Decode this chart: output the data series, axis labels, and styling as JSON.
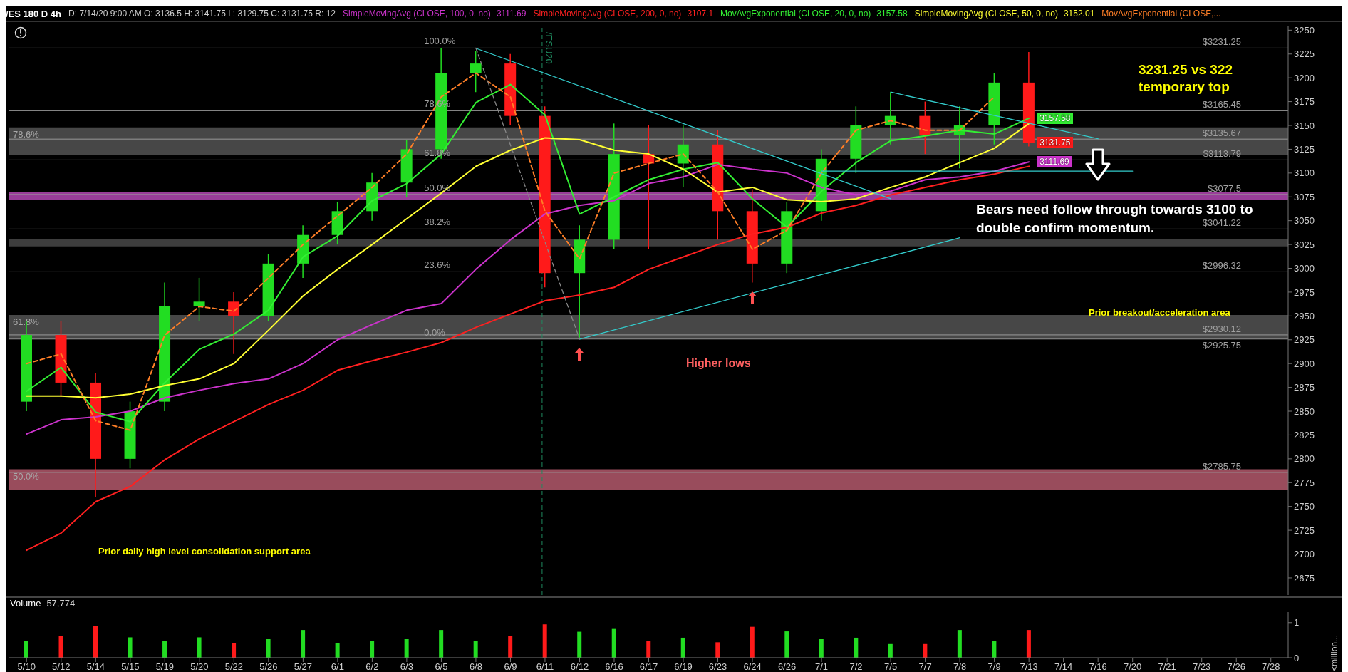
{
  "chart_data": [
    {
      "type": "candlestick",
      "title": "/ES 180 D 4h",
      "subtitle": "D: 7/14/20 9:00 AM  O: 3136.5  H: 3141.75  L: 3129.75  C: 3131.75  R: 12",
      "categories": [
        "5/10",
        "5/12",
        "5/14",
        "5/15",
        "5/19",
        "5/20",
        "5/22",
        "5/26",
        "5/27",
        "6/1",
        "6/2",
        "6/3",
        "6/5",
        "6/8",
        "6/9",
        "6/11",
        "6/12",
        "6/16",
        "6/17",
        "6/19",
        "6/23",
        "6/24",
        "6/26",
        "7/1",
        "7/2",
        "7/5",
        "7/7",
        "7/8",
        "7/9",
        "7/13",
        "7/14",
        "7/16",
        "7/20",
        "7/21",
        "7/23",
        "7/26",
        "7/28"
      ],
      "ohlc": [
        [
          2860,
          2945,
          2850,
          2930
        ],
        [
          2930,
          2945,
          2865,
          2880
        ],
        [
          2880,
          2890,
          2760,
          2800
        ],
        [
          2800,
          2860,
          2790,
          2850
        ],
        [
          2860,
          2985,
          2850,
          2960
        ],
        [
          2960,
          2990,
          2945,
          2965
        ],
        [
          2965,
          2975,
          2910,
          2950
        ],
        [
          2950,
          3015,
          2945,
          3005
        ],
        [
          3005,
          3045,
          2990,
          3035
        ],
        [
          3035,
          3070,
          3025,
          3060
        ],
        [
          3060,
          3100,
          3050,
          3090
        ],
        [
          3090,
          3135,
          3075,
          3125
        ],
        [
          3125,
          3231.25,
          3115,
          3205
        ],
        [
          3205,
          3228,
          3185,
          3215
        ],
        [
          3215,
          3225,
          3150,
          3160
        ],
        [
          3160,
          3170,
          2980,
          2995
        ],
        [
          2995,
          3045,
          2925.75,
          3030
        ],
        [
          3030,
          3152,
          3020,
          3120
        ],
        [
          3120,
          3150,
          3020,
          3110
        ],
        [
          3110,
          3150,
          3085,
          3130
        ],
        [
          3130,
          3145,
          3030,
          3060
        ],
        [
          3060,
          3083,
          2985,
          3005
        ],
        [
          3005,
          3070,
          2995,
          3060
        ],
        [
          3060,
          3125,
          3050,
          3115
        ],
        [
          3115,
          3170,
          3100,
          3150
        ],
        [
          3150,
          3185,
          3130,
          3160
        ],
        [
          3160,
          3175,
          3120,
          3140
        ],
        [
          3140,
          3170,
          3105,
          3150
        ],
        [
          3150,
          3205,
          3130,
          3195
        ],
        [
          3195,
          3227,
          3128,
          3131.75
        ],
        null,
        null,
        null,
        null,
        null,
        null,
        null
      ],
      "colors": [
        "#22dd22",
        "#ff1a1a",
        "#ff1a1a",
        "#22dd22",
        "#22dd22",
        "#22dd22",
        "#ff1a1a",
        "#22dd22",
        "#22dd22",
        "#22dd22",
        "#22dd22",
        "#22dd22",
        "#22dd22",
        "#22dd22",
        "#ff1a1a",
        "#ff1a1a",
        "#22dd22",
        "#22dd22",
        "#ff1a1a",
        "#22dd22",
        "#ff1a1a",
        "#ff1a1a",
        "#22dd22",
        "#22dd22",
        "#22dd22",
        "#22dd22",
        "#ff1a1a",
        "#22dd22",
        "#22dd22",
        "#ff1a1a",
        null,
        null,
        null,
        null,
        null,
        null,
        null
      ],
      "series": [
        {
          "type": "line",
          "name": "SimpleMovingAvg (CLOSE, 100, 0, no)",
          "color": "#cc33cc",
          "values": [
            2826,
            2841,
            2844,
            2850,
            2864,
            2872,
            2879,
            2884,
            2900,
            2925,
            2941,
            2956,
            2963,
            2999,
            3030,
            3057,
            3066,
            3071,
            3089,
            3096,
            3109,
            3104,
            3100,
            3085,
            3077,
            3081,
            3093,
            3096,
            3102,
            3111.69,
            null,
            null,
            null,
            null,
            null,
            null,
            null
          ]
        },
        {
          "type": "line",
          "name": "SimpleMovingAvg (CLOSE, 200, 0, no)",
          "color": "#ff2020",
          "values": [
            2704,
            2722,
            2755,
            2771,
            2799,
            2821,
            2839,
            2857,
            2872,
            2893,
            2903,
            2912,
            2922,
            2938,
            2952,
            2966,
            2972,
            2980,
            2999,
            3012,
            3025,
            3036,
            3043,
            3058,
            3066,
            3077,
            3085,
            3093,
            3099,
            3107.1,
            null,
            null,
            null,
            null,
            null,
            null,
            null
          ]
        },
        {
          "type": "line",
          "name": "MovAvgExponential (CLOSE, 20, 0, no)",
          "color": "#33ee33",
          "values": [
            2871,
            2896,
            2849,
            2839,
            2880,
            2915,
            2931,
            2956,
            3012,
            3034,
            3071,
            3089,
            3120,
            3174,
            3193,
            3161,
            3057,
            3075,
            3093,
            3104,
            3111,
            3073,
            3043,
            3081,
            3111,
            3134,
            3139,
            3145,
            3141,
            3157.58,
            null,
            null,
            null,
            null,
            null,
            null,
            null
          ]
        },
        {
          "type": "line",
          "name": "SimpleMovingAvg (CLOSE, 50, 0, no)",
          "color": "#ffff33",
          "values": [
            2866,
            2866,
            2864,
            2868,
            2877,
            2884,
            2900,
            2935,
            2971,
            2999,
            3025,
            3052,
            3079,
            3107,
            3124,
            3137,
            3135,
            3124,
            3120,
            3104,
            3080,
            3085,
            3072,
            3070,
            3073,
            3085,
            3096,
            3111,
            3126,
            3152.01,
            null,
            null,
            null,
            null,
            null,
            null,
            null
          ]
        },
        {
          "type": "line",
          "name": "MovAvgExponential (CLOSE,...",
          "color": "#ff7f27",
          "line_style": "dashed",
          "values": [
            2900,
            2910,
            2840,
            2830,
            2930,
            2960,
            2955,
            2990,
            3025,
            3055,
            3085,
            3120,
            3180,
            3205,
            3180,
            3060,
            3010,
            3100,
            3110,
            3120,
            3080,
            3020,
            3040,
            3100,
            3145,
            3155,
            3145,
            3145,
            3180,
            null,
            null,
            null,
            null,
            null,
            null,
            null,
            null
          ]
        },
        {
          "type": "line",
          "color": "#33cccc",
          "x": [
            "6/8",
            "7/5"
          ],
          "values": [
            3231,
            3073
          ]
        },
        {
          "type": "line",
          "color": "#33cccc",
          "x": [
            "6/12",
            "7/8"
          ],
          "values": [
            2925.75,
            3032
          ]
        },
        {
          "type": "line",
          "color": "#33cccc",
          "x": [
            "7/5",
            "7/16"
          ],
          "values": [
            3185,
            3136
          ]
        },
        {
          "type": "line",
          "color": "#33cccc",
          "x": [
            "7/1",
            "7/20"
          ],
          "values": [
            3102,
            3102
          ]
        },
        {
          "type": "line",
          "color": "#888888",
          "line_style": "dashed",
          "x": [
            "6/8",
            "6/12"
          ],
          "values": [
            3231.25,
            2925.75
          ]
        }
      ],
      "ylim": [
        2657,
        3254
      ],
      "yticks": [
        2675,
        2700,
        2725,
        2750,
        2775,
        2800,
        2825,
        2850,
        2875,
        2900,
        2925,
        2950,
        2975,
        3000,
        3025,
        3050,
        3075,
        3100,
        3125,
        3150,
        3175,
        3200,
        3225,
        3250
      ],
      "tick_labels": "y",
      "legend": "top",
      "marker": "none",
      "line_style": "solid",
      "ref_lines": [
        {
          "axis": "y",
          "value": 3231.25,
          "label": "$3231.25",
          "color": "#9a9a9a"
        },
        {
          "axis": "y",
          "value": 3165.45,
          "label": "$3165.45",
          "color": "#9a9a9a"
        },
        {
          "axis": "y",
          "value": 3135.67,
          "label": "$3135.67",
          "color": "#9a9a9a"
        },
        {
          "axis": "y",
          "value": 3113.79,
          "label": "$3113.79",
          "color": "#9a9a9a"
        },
        {
          "axis": "y",
          "value": 3077.5,
          "label": "$3077.5",
          "color": "#9a9a9a"
        },
        {
          "axis": "y",
          "value": 3041.22,
          "label": "$3041.22",
          "color": "#9a9a9a"
        },
        {
          "axis": "y",
          "value": 2996.32,
          "label": "$2996.32",
          "color": "#9a9a9a"
        },
        {
          "axis": "y",
          "value": 2930.12,
          "label": "$2930.12",
          "color": "#9a9a9a"
        },
        {
          "axis": "y",
          "value": 2925.75,
          "label": "$2925.75",
          "color": "#9a9a9a"
        },
        {
          "axis": "y",
          "value": 2785.75,
          "label": "$2785.75",
          "color": "#9a9a9a"
        },
        {
          "axis": "x",
          "value": "6/11",
          "label": "/ESU20",
          "color": "#1f8a5f",
          "line_style": "dashed"
        }
      ],
      "bands": [
        {
          "axis": "y",
          "from": 3119,
          "to": 3148,
          "label": "78.6%",
          "color": "#777777"
        },
        {
          "axis": "y",
          "from": 2926,
          "to": 2951,
          "label": "61.8%",
          "color": "#777777"
        },
        {
          "axis": "y",
          "from": 2767,
          "to": 2789,
          "label": "50.0%",
          "color": "#ff7f9a"
        },
        {
          "axis": "y",
          "from": 3072,
          "to": 3080,
          "color": "#ff66ff"
        },
        {
          "axis": "y",
          "from": 3023,
          "to": 3031,
          "color": "#666666"
        }
      ],
      "annotations": [
        {
          "text": "100.0%",
          "x": "6/5",
          "y": 3231.25
        },
        {
          "text": "78.6%",
          "x": "6/5",
          "y": 3165.45
        },
        {
          "text": "61.8%",
          "x": "6/5",
          "y": 3113.79
        },
        {
          "text": "50.0%",
          "x": "6/5",
          "y": 3077.5
        },
        {
          "text": "38.2%",
          "x": "6/5",
          "y": 3041.22
        },
        {
          "text": "23.6%",
          "x": "6/5",
          "y": 2996.32
        },
        {
          "text": "0.0%",
          "x": "6/5",
          "y": 2925.75
        },
        {
          "text": "3157.58",
          "x": "7/13",
          "y": 3157.58
        },
        {
          "text": "3131.75",
          "x": "7/13",
          "y": 3131.75
        },
        {
          "text": "3111.69",
          "x": "7/13",
          "y": 3111.69
        },
        "3111.69",
        "3107.1",
        "3157.58",
        "3152.01",
        "3231.25 vs 322",
        "temporary top",
        "Bears need follow through towards 3100 to",
        "double confirm momentum.",
        "Prior breakout/acceleration area",
        "Higher lows",
        "Prior daily high level consolidation support area"
      ]
    },
    {
      "type": "bar",
      "title": "Volume",
      "ylabel": "<million...",
      "annotations": [
        "57,774"
      ],
      "categories": [
        "5/10",
        "5/12",
        "5/14",
        "5/15",
        "5/19",
        "5/20",
        "5/22",
        "5/26",
        "5/27",
        "6/1",
        "6/2",
        "6/3",
        "6/5",
        "6/8",
        "6/9",
        "6/11",
        "6/12",
        "6/16",
        "6/17",
        "6/19",
        "6/23",
        "6/24",
        "6/26",
        "7/1",
        "7/2",
        "7/5",
        "7/7",
        "7/8",
        "7/9",
        "7/13",
        "7/14",
        "7/16",
        "7/20",
        "7/21",
        "7/23",
        "7/26",
        "7/28"
      ],
      "values": [
        0.47,
        0.63,
        0.9,
        0.58,
        0.47,
        0.58,
        0.42,
        0.53,
        0.79,
        0.42,
        0.47,
        0.53,
        0.79,
        0.47,
        0.63,
        0.95,
        0.74,
        0.84,
        0.47,
        0.57,
        0.44,
        0.88,
        0.75,
        0.53,
        0.57,
        0.39,
        0.39,
        0.79,
        0.48,
        0.79,
        null,
        null,
        null,
        null,
        null,
        null,
        null
      ],
      "colors": [
        "#22dd22",
        "#ff1a1a",
        "#ff1a1a",
        "#22dd22",
        "#22dd22",
        "#22dd22",
        "#ff1a1a",
        "#22dd22",
        "#22dd22",
        "#22dd22",
        "#22dd22",
        "#22dd22",
        "#22dd22",
        "#22dd22",
        "#ff1a1a",
        "#ff1a1a",
        "#22dd22",
        "#22dd22",
        "#ff1a1a",
        "#22dd22",
        "#ff1a1a",
        "#ff1a1a",
        "#22dd22",
        "#22dd22",
        "#22dd22",
        "#22dd22",
        "#ff1a1a",
        "#22dd22",
        "#22dd22",
        "#ff1a1a",
        null,
        null,
        null,
        null,
        null,
        null,
        null
      ],
      "ylim": [
        0,
        1.3
      ],
      "yticks": [
        0,
        1
      ]
    }
  ]
}
